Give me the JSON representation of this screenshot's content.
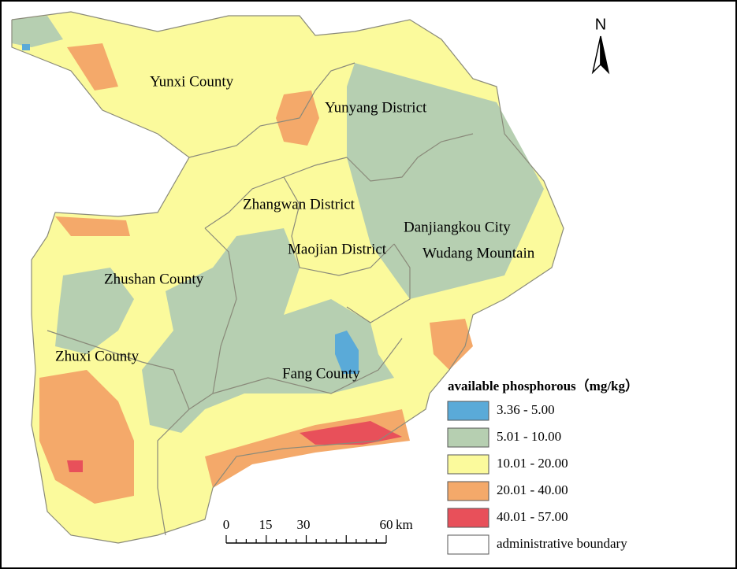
{
  "map": {
    "north_label": "N",
    "regions": [
      "Yunxi County",
      "Yunyang District",
      "Zhangwan District",
      "Danjiangkou City",
      "Maojian District",
      "Wudang Mountain",
      "Zhushan County",
      "Zhuxi County",
      "Fang County"
    ],
    "legend": {
      "title": "available phosphorous（mg/kg）",
      "items": [
        {
          "label": "3.36 - 5.00",
          "color": "#5aaad8"
        },
        {
          "label": "5.01 - 10.00",
          "color": "#b6cfb1"
        },
        {
          "label": "10.01 - 20.00",
          "color": "#fbfa9c"
        },
        {
          "label": "20.01 - 40.00",
          "color": "#f4a96a"
        },
        {
          "label": "40.01 - 57.00",
          "color": "#e8505a"
        },
        {
          "label": "administrative boundary",
          "color": "#ffffff"
        }
      ]
    },
    "scale_bar": {
      "ticks": [
        "0",
        "15",
        "30",
        "60"
      ],
      "unit": "km"
    }
  }
}
